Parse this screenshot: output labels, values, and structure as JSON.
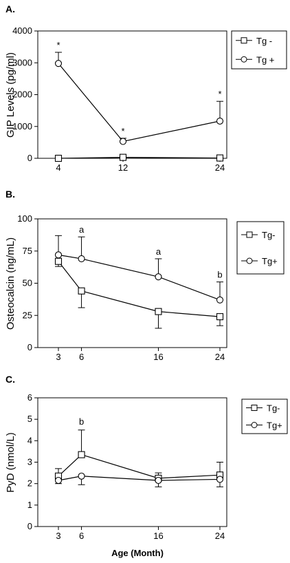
{
  "chart_data": [
    {
      "type": "line",
      "panel_label": "A.",
      "ylabel": "GIP Levels (pg/ml)",
      "xlabel": "",
      "ylim": [
        0,
        4000
      ],
      "yticks": [
        "0",
        "1000",
        "2000",
        "3000",
        "4000"
      ],
      "x": [
        4,
        12,
        24
      ],
      "xticks": [
        "4",
        "12",
        "24"
      ],
      "series": [
        {
          "name": "Tg -",
          "marker": "square",
          "values": [
            0,
            30,
            10
          ],
          "err_up": [
            0,
            0,
            0
          ]
        },
        {
          "name": "Tg +",
          "marker": "circle",
          "values": [
            2980,
            530,
            1170
          ],
          "err_up": [
            350,
            100,
            620
          ]
        }
      ],
      "annotations": [
        {
          "x": 4,
          "y": 3330,
          "text": "*"
        },
        {
          "x": 12,
          "y": 630,
          "text": "*"
        },
        {
          "x": 24,
          "y": 1790,
          "text": "*"
        }
      ],
      "legend": "right"
    },
    {
      "type": "line",
      "panel_label": "B.",
      "ylabel": "Osteocalcin (ng/mL)",
      "xlabel": "",
      "ylim": [
        0,
        100
      ],
      "yticks": [
        "0",
        "25",
        "50",
        "75",
        "100"
      ],
      "x": [
        3,
        6,
        16,
        24
      ],
      "xticks": [
        "3",
        "6",
        "16",
        "24"
      ],
      "series": [
        {
          "name": "Tg-",
          "marker": "square",
          "values": [
            67,
            44,
            28,
            24
          ],
          "err_down": [
            4,
            13,
            13,
            7
          ]
        },
        {
          "name": "Tg+",
          "marker": "circle",
          "values": [
            72,
            69,
            55,
            37
          ],
          "err_up": [
            15,
            17,
            14,
            14
          ]
        }
      ],
      "annotations": [
        {
          "x": 6,
          "y": 86,
          "text": "a"
        },
        {
          "x": 16,
          "y": 69,
          "text": "a"
        },
        {
          "x": 24,
          "y": 51,
          "text": "b"
        }
      ],
      "legend": "right"
    },
    {
      "type": "line",
      "panel_label": "C.",
      "ylabel": "PyD (nmol/L)",
      "xlabel": "Age (Month)",
      "ylim": [
        0,
        6
      ],
      "yticks": [
        "0",
        "1",
        "2",
        "3",
        "4",
        "5",
        "6"
      ],
      "x": [
        3,
        6,
        16,
        24
      ],
      "xticks": [
        "3",
        "6",
        "16",
        "24"
      ],
      "series": [
        {
          "name": "Tg-",
          "marker": "square",
          "values": [
            2.35,
            3.35,
            2.25,
            2.4
          ],
          "err_up": [
            0.35,
            1.15,
            0.25,
            0.6
          ]
        },
        {
          "name": "Tg+",
          "marker": "circle",
          "values": [
            2.15,
            2.35,
            2.15,
            2.2
          ],
          "err_down": [
            0.15,
            0.4,
            0.3,
            0.35
          ]
        }
      ],
      "annotations": [
        {
          "x": 6,
          "y": 4.55,
          "text": "b"
        }
      ],
      "legend": "right"
    }
  ]
}
